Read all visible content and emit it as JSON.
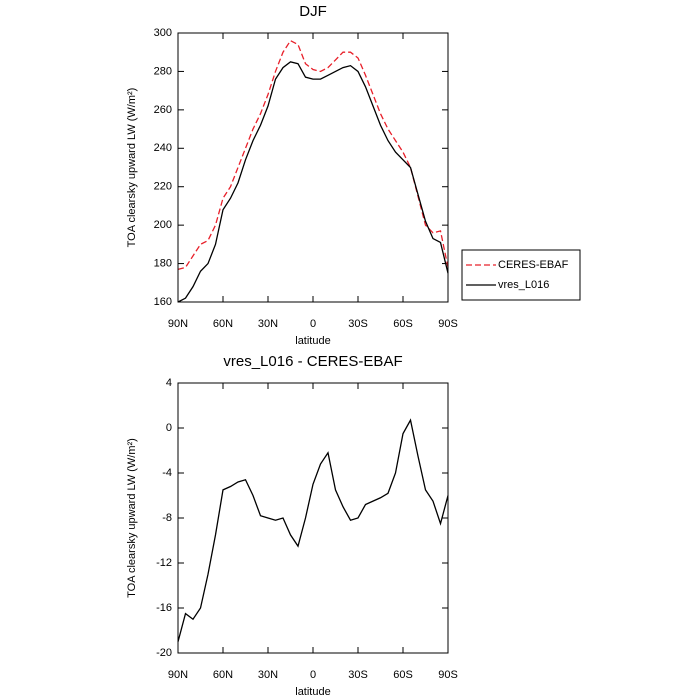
{
  "chart_data": [
    {
      "type": "line",
      "title": "DJF",
      "xlabel": "latitude",
      "ylabel": "TOA clearsky upward LW (W/m²)",
      "x": [
        90,
        85,
        80,
        75,
        70,
        65,
        60,
        55,
        50,
        45,
        40,
        35,
        30,
        25,
        20,
        15,
        10,
        5,
        0,
        -5,
        -10,
        -15,
        -20,
        -25,
        -30,
        -35,
        -40,
        -45,
        -50,
        -55,
        -60,
        -65,
        -70,
        -75,
        -80,
        -85,
        -90
      ],
      "series": [
        {
          "name": "CERES-EBAF",
          "color": "#e8202a",
          "linestyle": "dashed",
          "values": [
            177,
            178,
            184,
            190,
            192,
            200,
            214,
            220,
            230,
            240,
            250,
            258,
            268,
            280,
            290,
            296,
            294,
            284,
            281,
            280,
            282,
            286,
            290,
            290,
            287,
            278,
            268,
            258,
            250,
            244,
            238,
            230,
            215,
            200,
            196,
            197,
            178
          ]
        },
        {
          "name": "vres_L016",
          "color": "#000000",
          "linestyle": "solid",
          "values": [
            160,
            162,
            168,
            176,
            180,
            190,
            208,
            214,
            222,
            234,
            244,
            252,
            262,
            276,
            282,
            285,
            284,
            277,
            276,
            276,
            278,
            280,
            282,
            283,
            280,
            272,
            262,
            252,
            244,
            238,
            234,
            230,
            216,
            202,
            193,
            191,
            175
          ]
        }
      ],
      "xlim": [
        90,
        -90
      ],
      "xticks": [
        {
          "value": 90,
          "label": "90N"
        },
        {
          "value": 60,
          "label": "60N"
        },
        {
          "value": 30,
          "label": "30N"
        },
        0,
        {
          "value": -30,
          "label": "30S"
        },
        {
          "value": -60,
          "label": "60S"
        },
        {
          "value": -90,
          "label": "90S"
        }
      ],
      "ylim": [
        160,
        300
      ],
      "yticks": [
        160,
        180,
        200,
        220,
        240,
        260,
        280,
        300
      ],
      "legend": "right"
    },
    {
      "type": "line",
      "title": "vres_L016 - CERES-EBAF",
      "xlabel": "latitude",
      "ylabel": "TOA clearsky upward LW (W/m²)",
      "x": [
        90,
        85,
        80,
        75,
        70,
        65,
        60,
        55,
        50,
        45,
        40,
        35,
        30,
        25,
        20,
        15,
        10,
        5,
        0,
        -5,
        -10,
        -15,
        -20,
        -25,
        -30,
        -35,
        -40,
        -45,
        -50,
        -55,
        -60,
        -65,
        -70,
        -75,
        -80,
        -85,
        -90
      ],
      "series": [
        {
          "color": "#000000",
          "linestyle": "solid",
          "values": [
            -19,
            -16.5,
            -17,
            -16,
            -13,
            -9.5,
            -5.5,
            -5.2,
            -4.8,
            -4.6,
            -6,
            -7.8,
            -8,
            -8.2,
            -8,
            -9.5,
            -10.5,
            -8,
            -5,
            -3.2,
            -2.2,
            -5.5,
            -7,
            -8.2,
            -8,
            -6.8,
            -6.5,
            -6.2,
            -5.8,
            -4,
            -0.5,
            0.7,
            -2.5,
            -5.5,
            -6.5,
            -8.5,
            -6
          ]
        }
      ],
      "xlim": [
        90,
        -90
      ],
      "xticks": [
        {
          "value": 90,
          "label": "90N"
        },
        {
          "value": 60,
          "label": "60N"
        },
        {
          "value": 30,
          "label": "30N"
        },
        0,
        {
          "value": -30,
          "label": "30S"
        },
        {
          "value": -60,
          "label": "60S"
        },
        {
          "value": -90,
          "label": "90S"
        }
      ],
      "ylim": [
        -20,
        4
      ],
      "yticks": [
        -20,
        -16,
        -12,
        -8,
        -4,
        0,
        4
      ]
    }
  ]
}
